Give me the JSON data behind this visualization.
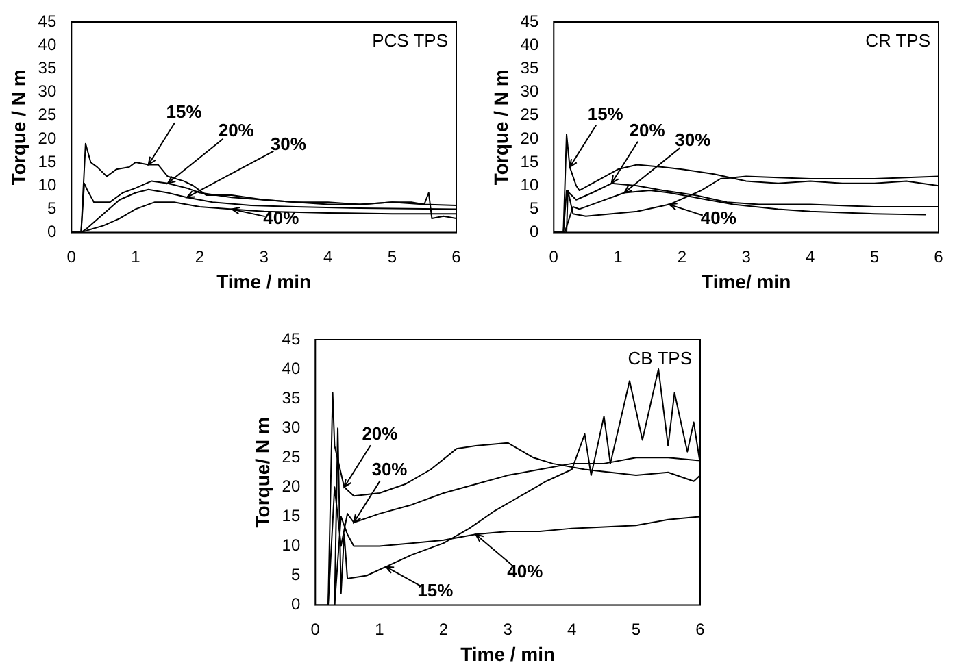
{
  "chart_data": [
    {
      "type": "line",
      "title": "PCS TPS",
      "xlabel": "Time / min",
      "ylabel": "Torque / N m",
      "xlim": [
        0,
        6
      ],
      "ylim": [
        0,
        45
      ],
      "xticks": [
        0,
        1,
        2,
        3,
        4,
        5,
        6
      ],
      "yticks": [
        0,
        5,
        10,
        15,
        20,
        25,
        30,
        35,
        40,
        45
      ],
      "marker": "none",
      "line_style": "solid",
      "legend": false,
      "grid": false,
      "series": [
        {
          "color": "#000000",
          "x": [
            0,
            0.15,
            0.22,
            0.3,
            0.4,
            0.55,
            0.7,
            0.9,
            1.0,
            1.2,
            1.35,
            1.5,
            1.75,
            1.9,
            2.1,
            2.5,
            3,
            3.5,
            4,
            4.5,
            5,
            5.3,
            5.5,
            5.57,
            5.62,
            5.8,
            6
          ],
          "values": [
            0,
            0,
            19,
            15,
            14,
            12,
            13.5,
            14,
            15,
            14.5,
            14.5,
            12,
            11,
            10,
            8,
            8,
            7,
            6.5,
            6.5,
            6,
            6.5,
            6.5,
            6,
            8.5,
            3,
            3.5,
            3
          ]
        },
        {
          "color": "#000000",
          "x": [
            0,
            0.15,
            0.2,
            0.25,
            0.35,
            0.6,
            0.8,
            1.0,
            1.25,
            1.5,
            1.8,
            2.0,
            2.5,
            3,
            3.5,
            4,
            4.5,
            5,
            5.5,
            6
          ],
          "values": [
            0,
            0,
            10.5,
            9,
            6.5,
            6.5,
            8.5,
            9.5,
            11,
            10.5,
            9.5,
            8.5,
            7.5,
            7,
            6.5,
            6,
            6,
            6.5,
            6,
            5.8
          ]
        },
        {
          "color": "#000000",
          "x": [
            0,
            0.15,
            0.25,
            0.5,
            0.75,
            1,
            1.2,
            1.5,
            1.8,
            2.2,
            2.8,
            3.5,
            4.5,
            6
          ],
          "values": [
            0,
            0,
            1,
            4,
            7,
            8.5,
            9.2,
            8.5,
            7.5,
            6.5,
            5.8,
            5.5,
            5.2,
            5
          ]
        },
        {
          "color": "#000000",
          "x": [
            0,
            0.15,
            0.25,
            0.5,
            0.75,
            1,
            1.3,
            1.6,
            2,
            2.5,
            3,
            4,
            5,
            6
          ],
          "values": [
            0,
            0,
            0.5,
            1.5,
            3,
            5,
            6.5,
            6.5,
            5.5,
            5,
            4.5,
            4.2,
            4,
            4
          ]
        }
      ],
      "annotations": [
        {
          "text": "15%",
          "x": 1.2,
          "y": 14.5
        },
        {
          "text": "20%",
          "x": 1.5,
          "y": 10.5
        },
        {
          "text": "30%",
          "x": 1.8,
          "y": 7.5
        },
        {
          "text": "40%",
          "x": 2.5,
          "y": 5
        }
      ]
    },
    {
      "type": "line",
      "title": "CR TPS",
      "xlabel": "Time/ min",
      "ylabel": "Torque / N m",
      "xlim": [
        0,
        6
      ],
      "ylim": [
        0,
        45
      ],
      "xticks": [
        0,
        1,
        2,
        3,
        4,
        5,
        6
      ],
      "yticks": [
        0,
        5,
        10,
        15,
        20,
        25,
        30,
        35,
        40,
        45
      ],
      "marker": "none",
      "line_style": "solid",
      "legend": false,
      "grid": false,
      "series": [
        {
          "color": "#000000",
          "x": [
            0,
            0.15,
            0.2,
            0.25,
            0.35,
            0.4,
            0.6,
            0.8,
            1.0,
            1.3,
            1.7,
            2.0,
            2.5,
            3,
            3.5,
            4,
            4.5,
            5,
            5.5,
            6
          ],
          "values": [
            0,
            0,
            21,
            14,
            10,
            9,
            10.5,
            12,
            13.5,
            14.5,
            14,
            13.5,
            12.5,
            11,
            10.5,
            11,
            10.5,
            10.5,
            11,
            10
          ]
        },
        {
          "color": "#000000",
          "x": [
            0,
            0.15,
            0.2,
            0.35,
            0.6,
            0.9,
            1.3,
            1.7,
            2.2,
            2.7,
            3.2,
            4,
            5,
            6
          ],
          "values": [
            0,
            0,
            9,
            7,
            8.5,
            10.5,
            10,
            9,
            8,
            6.5,
            6,
            6,
            5.5,
            5.5
          ]
        },
        {
          "color": "#000000",
          "x": [
            0,
            0.17,
            0.3,
            0.4,
            0.7,
            1.1,
            1.5,
            1.8,
            2.2,
            2.8,
            3.5,
            4,
            5,
            5.8
          ],
          "values": [
            0,
            0,
            5.5,
            5,
            6.5,
            8.5,
            9,
            8.5,
            7.5,
            6,
            5,
            4.5,
            4,
            3.8
          ]
        },
        {
          "color": "#000000",
          "x": [
            0,
            0.2,
            0.22,
            0.3,
            0.5,
            1.3,
            1.8,
            2.3,
            2.6,
            3,
            4,
            5,
            6
          ],
          "values": [
            0,
            0,
            9,
            4,
            3.5,
            4.5,
            6,
            9,
            11.5,
            12,
            11.5,
            11.5,
            12
          ]
        }
      ],
      "annotations": [
        {
          "text": "15%",
          "x": 0.25,
          "y": 14
        },
        {
          "text": "20%",
          "x": 0.9,
          "y": 10.5
        },
        {
          "text": "30%",
          "x": 1.1,
          "y": 8.5
        },
        {
          "text": "40%",
          "x": 1.8,
          "y": 6
        }
      ]
    },
    {
      "type": "line",
      "title": "CB TPS",
      "xlabel": "Time / min",
      "ylabel": "Torque/ N m",
      "xlim": [
        0,
        6
      ],
      "ylim": [
        0,
        45
      ],
      "xticks": [
        0,
        1,
        2,
        3,
        4,
        5,
        6
      ],
      "yticks": [
        0,
        5,
        10,
        15,
        20,
        25,
        30,
        35,
        40,
        45
      ],
      "marker": "none",
      "line_style": "solid",
      "legend": false,
      "grid": false,
      "series": [
        {
          "color": "#000000",
          "x": [
            0,
            0.2,
            0.27,
            0.3,
            0.45,
            0.6,
            1,
            1.4,
            1.8,
            2.2,
            2.5,
            3,
            3.4,
            3.7,
            4.2,
            4.6,
            5,
            5.5,
            5.9,
            6
          ],
          "values": [
            0,
            0,
            36,
            27,
            20,
            18.5,
            19,
            20.5,
            23,
            26.5,
            27,
            27.5,
            25,
            24,
            23,
            22.5,
            22,
            22.5,
            21,
            22
          ]
        },
        {
          "color": "#000000",
          "x": [
            0.2,
            0.3,
            0.4,
            0.5,
            0.6,
            1,
            1.5,
            2,
            2.5,
            3,
            3.5,
            4,
            4.5,
            5,
            5.5,
            6
          ],
          "values": [
            0,
            20,
            10,
            15.5,
            14,
            15.5,
            17,
            19,
            20.5,
            22,
            23,
            24,
            24,
            25,
            25,
            24.5
          ]
        },
        {
          "color": "#000000",
          "x": [
            0.3,
            0.35,
            0.4,
            0.45,
            0.5,
            0.8,
            1.1,
            1.5,
            2,
            2.4,
            2.8,
            3.2,
            3.6,
            4,
            4.2,
            4.3,
            4.5,
            4.6,
            4.9,
            5.1,
            5.35,
            5.5,
            5.6,
            5.8,
            5.9,
            6
          ],
          "values": [
            0,
            30,
            2,
            12,
            4.5,
            5,
            6.5,
            8.5,
            10.5,
            13,
            16,
            18.5,
            21,
            23,
            29,
            22,
            32,
            24,
            38,
            28,
            40,
            27,
            36,
            26,
            31,
            24
          ]
        },
        {
          "color": "#000000",
          "x": [
            0.3,
            0.4,
            0.5,
            0.6,
            1,
            1.5,
            2,
            2.5,
            3,
            3.5,
            4,
            5,
            5.5,
            6
          ],
          "values": [
            0,
            15,
            12,
            10,
            10,
            10.5,
            11,
            12,
            12.5,
            12.5,
            13,
            13.5,
            14.5,
            15
          ]
        }
      ],
      "annotations": [
        {
          "text": "20%",
          "x": 0.45,
          "y": 20
        },
        {
          "text": "30%",
          "x": 0.6,
          "y": 14
        },
        {
          "text": "15%",
          "x": 1.1,
          "y": 6.5
        },
        {
          "text": "40%",
          "x": 2.5,
          "y": 12
        }
      ]
    }
  ]
}
